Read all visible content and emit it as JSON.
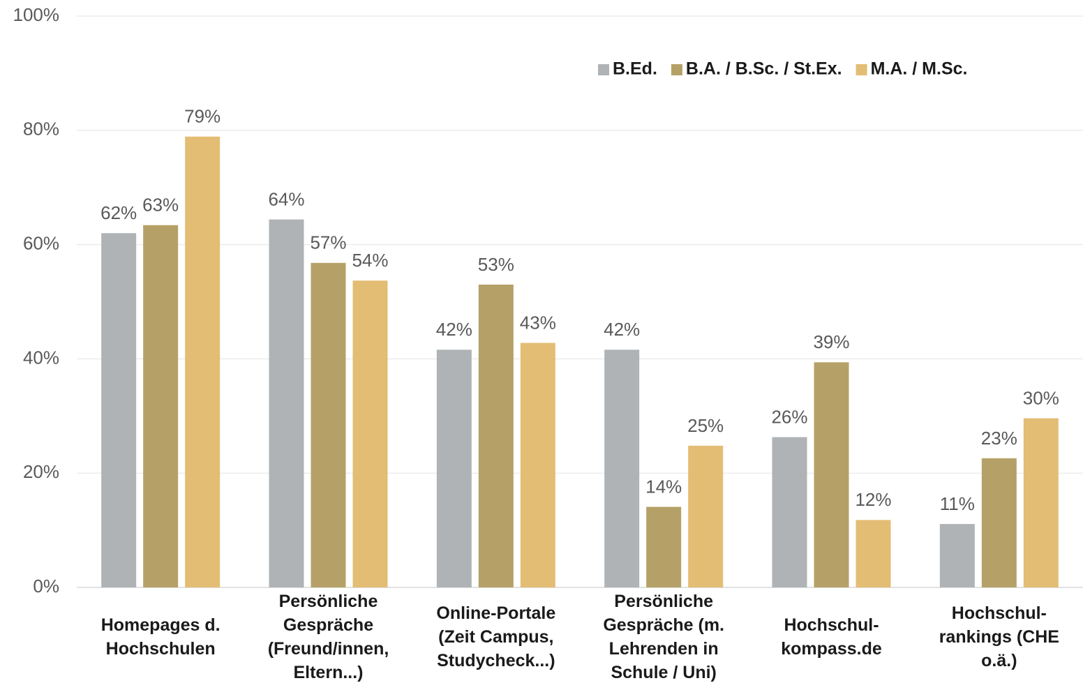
{
  "chart_data": {
    "type": "bar",
    "categories": [
      "Homepages d. Hochschulen",
      "Persönliche Gespräche (Freund/innen, Eltern...)",
      "Online-Portale (Zeit Campus, Studycheck...)",
      "Persönliche Gespräche (m. Lehrenden in Schule / Uni)",
      "Hochschul-kompass.de",
      "Hochschul-rankings (CHE o.ä.)"
    ],
    "series": [
      {
        "name": "B.Ed.",
        "color": "#afb3b6",
        "values": [
          62,
          64.4,
          41.6,
          41.6,
          26.3,
          11.1
        ],
        "value_labels": [
          "62%",
          "64%",
          "42%",
          "42%",
          "26%",
          "11%"
        ]
      },
      {
        "name": "B.A. / B.Sc. / St.Ex.",
        "color": "#b5a167",
        "values": [
          63.4,
          56.8,
          53,
          14.1,
          39.4,
          22.6
        ],
        "value_labels": [
          "63%",
          "57%",
          "53%",
          "14%",
          "39%",
          "23%"
        ]
      },
      {
        "name": "M.A. / M.Sc.",
        "color": "#e3bd74",
        "values": [
          78.9,
          53.7,
          42.8,
          24.8,
          11.8,
          29.6
        ],
        "value_labels": [
          "79%",
          "54%",
          "43%",
          "25%",
          "12%",
          "30%"
        ]
      }
    ],
    "ylim": [
      0,
      100
    ],
    "yticks": [
      {
        "value": 0,
        "label": "0%"
      },
      {
        "value": 20,
        "label": "20%"
      },
      {
        "value": 40,
        "label": "40%"
      },
      {
        "value": 60,
        "label": "60%"
      },
      {
        "value": 80,
        "label": "80%"
      },
      {
        "value": 100,
        "label": "100%"
      }
    ],
    "grid": true,
    "legend": "top-right"
  }
}
